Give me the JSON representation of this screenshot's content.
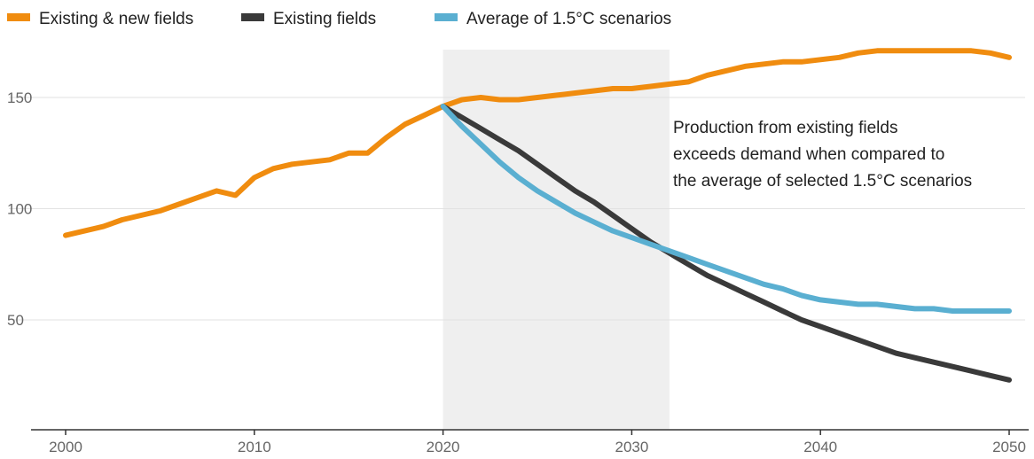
{
  "chart_data": {
    "type": "line",
    "title": "",
    "xlabel": "",
    "ylabel": "",
    "xlim": [
      2000,
      2050
    ],
    "ylim": [
      0,
      175
    ],
    "grid": true,
    "legend_position": "top-left",
    "x_ticks": [
      2000,
      2010,
      2020,
      2030,
      2040,
      2050
    ],
    "y_ticks": [
      50,
      100,
      150
    ],
    "x_tick_labels": [
      "2000",
      "2010",
      "2020",
      "2030",
      "2040",
      "2050"
    ],
    "y_tick_labels": [
      "50",
      "100",
      "150"
    ],
    "highlight_range": [
      2020,
      2032
    ],
    "annotation": [
      "Production from existing fields",
      "exceeds demand when compared to",
      "the average of selected 1.5°C scenarios"
    ],
    "series": [
      {
        "name": "Existing & new fields",
        "color": "#f08c0f",
        "x": [
          2000,
          2001,
          2002,
          2003,
          2004,
          2005,
          2006,
          2007,
          2008,
          2009,
          2010,
          2011,
          2012,
          2013,
          2014,
          2015,
          2016,
          2017,
          2018,
          2019,
          2020,
          2021,
          2022,
          2023,
          2024,
          2025,
          2026,
          2027,
          2028,
          2029,
          2030,
          2031,
          2032,
          2033,
          2034,
          2035,
          2036,
          2037,
          2038,
          2039,
          2040,
          2041,
          2042,
          2043,
          2044,
          2045,
          2046,
          2047,
          2048,
          2049,
          2050
        ],
        "y": [
          88,
          90,
          92,
          95,
          97,
          99,
          102,
          105,
          108,
          106,
          114,
          118,
          120,
          121,
          122,
          125,
          125,
          132,
          138,
          142,
          146,
          149,
          150,
          149,
          149,
          150,
          151,
          152,
          153,
          154,
          154,
          155,
          156,
          157,
          160,
          162,
          164,
          165,
          166,
          166,
          167,
          168,
          170,
          171,
          171,
          171,
          171,
          171,
          171,
          170,
          168
        ]
      },
      {
        "name": "Existing fields",
        "color": "#3a3a3a",
        "x": [
          2020,
          2021,
          2022,
          2023,
          2024,
          2025,
          2026,
          2027,
          2028,
          2029,
          2030,
          2031,
          2032,
          2033,
          2034,
          2035,
          2036,
          2037,
          2038,
          2039,
          2040,
          2041,
          2042,
          2043,
          2044,
          2045,
          2046,
          2047,
          2048,
          2049,
          2050
        ],
        "y": [
          146,
          141,
          136,
          131,
          126,
          120,
          114,
          108,
          103,
          97,
          91,
          85,
          80,
          75,
          70,
          66,
          62,
          58,
          54,
          50,
          47,
          44,
          41,
          38,
          35,
          33,
          31,
          29,
          27,
          25,
          23
        ]
      },
      {
        "name": "Average of 1.5°C scenarios",
        "color": "#5aafd1",
        "x": [
          2020,
          2021,
          2022,
          2023,
          2024,
          2025,
          2026,
          2027,
          2028,
          2029,
          2030,
          2031,
          2032,
          2033,
          2034,
          2035,
          2036,
          2037,
          2038,
          2039,
          2040,
          2041,
          2042,
          2043,
          2044,
          2045,
          2046,
          2047,
          2048,
          2049,
          2050
        ],
        "y": [
          146,
          137,
          129,
          121,
          114,
          108,
          103,
          98,
          94,
          90,
          87,
          84,
          81,
          78,
          75,
          72,
          69,
          66,
          64,
          61,
          59,
          58,
          57,
          57,
          56,
          55,
          55,
          54,
          54,
          54,
          54
        ]
      }
    ]
  }
}
